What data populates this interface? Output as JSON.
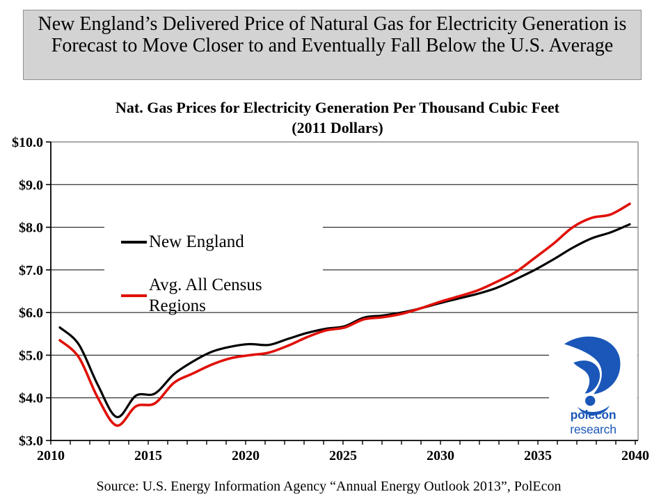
{
  "slide": {
    "headline": "New England’s Delivered Price of Natural Gas for Electricity Generation is Forecast to Move Closer to and Eventually Fall Below the U.S. Average",
    "source_note": "Source: U.S. Energy Information Agency “Annual Energy Outlook 2013”, PolEcon"
  },
  "chart_data": {
    "type": "line",
    "title": "Nat. Gas Prices for Electricity Generation Per Thousand Cubic Feet",
    "subtitle": "(2011 Dollars)",
    "grid": true,
    "legend_position": "inside-upper-left",
    "ylim": [
      3,
      10
    ],
    "yticks": [
      3,
      4,
      5,
      6,
      7,
      8,
      9,
      10
    ],
    "ytick_labels": [
      "$3.0",
      "$4.0",
      "$5.0",
      "$6.0",
      "$7.0",
      "$8.0",
      "$9.0",
      "$10.0"
    ],
    "xticks": [
      2010,
      2015,
      2020,
      2025,
      2030,
      2035,
      2040
    ],
    "years": [
      2010,
      2011,
      2012,
      2013,
      2014,
      2015,
      2016,
      2017,
      2018,
      2019,
      2020,
      2021,
      2022,
      2023,
      2024,
      2025,
      2026,
      2027,
      2028,
      2029,
      2030,
      2031,
      2032,
      2033,
      2034,
      2035,
      2036,
      2037,
      2038,
      2039,
      2040
    ],
    "series": [
      {
        "name": "New England",
        "color": "#000000",
        "values": [
          5.65,
          5.25,
          4.3,
          3.55,
          4.05,
          4.1,
          4.55,
          4.85,
          5.08,
          5.2,
          5.26,
          5.24,
          5.38,
          5.52,
          5.62,
          5.68,
          5.88,
          5.93,
          6.0,
          6.1,
          6.22,
          6.33,
          6.44,
          6.58,
          6.78,
          7.0,
          7.25,
          7.52,
          7.74,
          7.88,
          8.07
        ]
      },
      {
        "name": "Avg. All Census Regions",
        "color": "#e01008",
        "values": [
          5.35,
          4.95,
          4.0,
          3.35,
          3.8,
          3.87,
          4.35,
          4.57,
          4.78,
          4.93,
          5.0,
          5.06,
          5.22,
          5.42,
          5.58,
          5.65,
          5.84,
          5.89,
          5.97,
          6.1,
          6.25,
          6.38,
          6.52,
          6.72,
          6.95,
          7.28,
          7.62,
          8.0,
          8.22,
          8.3,
          8.55
        ]
      }
    ]
  },
  "logo": {
    "text_bold": "polecon",
    "text_rest": " research",
    "color": "#1a57b8"
  }
}
